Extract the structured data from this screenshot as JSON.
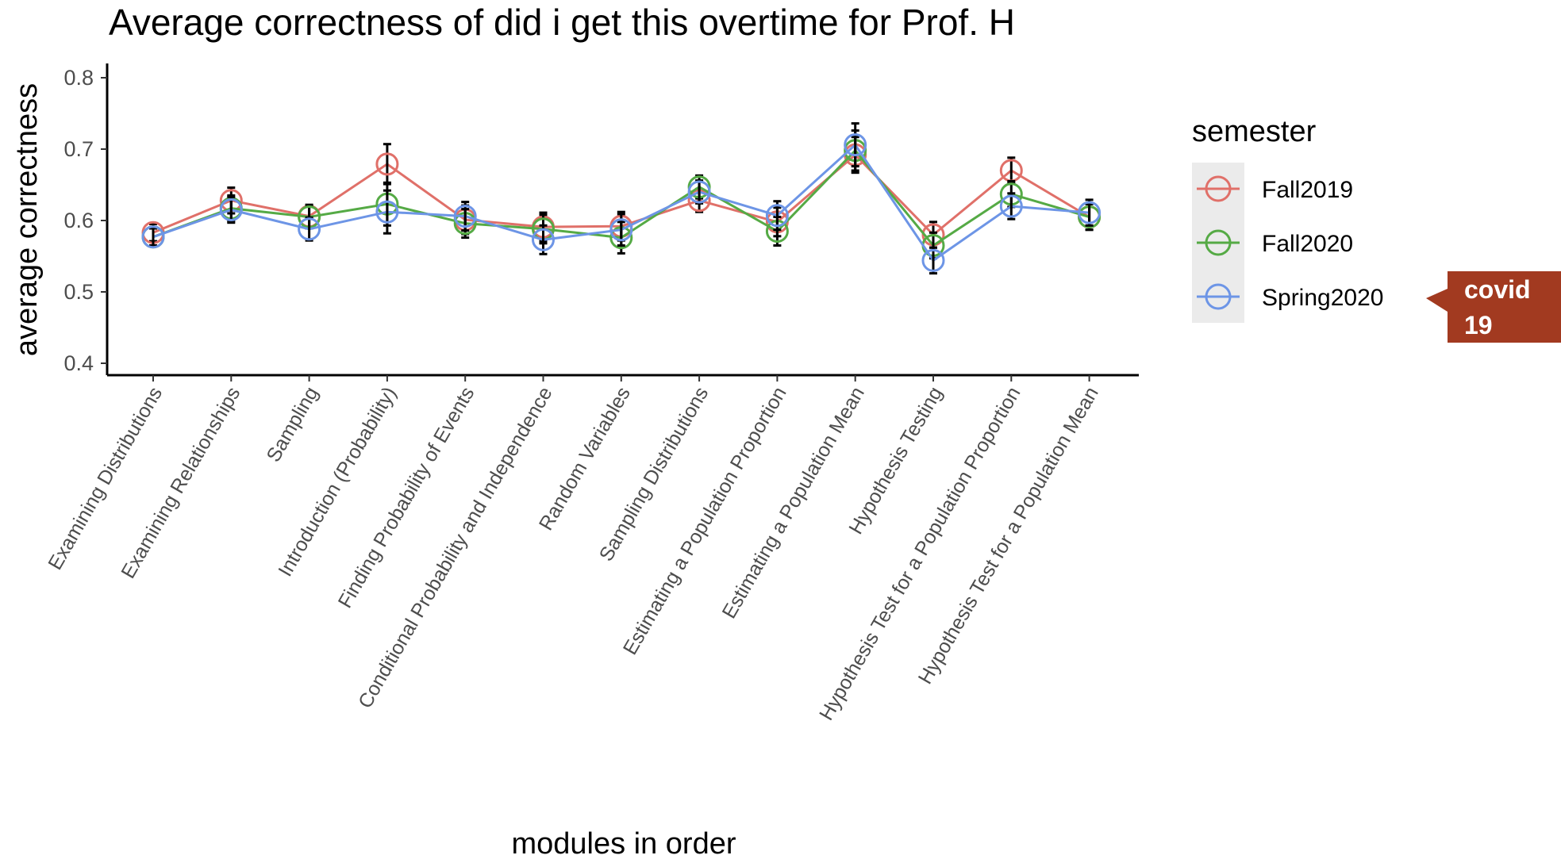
{
  "chart_data": {
    "type": "line",
    "title": "Average correctness of did i get this overtime for Prof. H",
    "xlabel": "modules in order",
    "ylabel": "average correctness",
    "ylim": [
      0.4,
      0.8
    ],
    "yticks": [
      "0.4",
      "0.5",
      "0.6",
      "0.7",
      "0.8"
    ],
    "ytick_values": [
      0.4,
      0.5,
      0.6,
      0.7,
      0.8
    ],
    "grid": false,
    "legend_position": "right",
    "legend_title": "semester",
    "categories": [
      "Examining Distributions",
      "Examining Relationships",
      "Sampling",
      "Introduction (Probability)",
      "Finding Probability of Events",
      "Conditional Probability and Independence",
      "Random Variables",
      "Sampling Distributions",
      "Estimating a Population Proportion",
      "Estimating a Population Mean",
      "Hypothesis Testing",
      "Hypothesis Test for a Population Proportion",
      "Hypothesis Test for a Population Mean"
    ],
    "series": [
      {
        "name": "Fall2019",
        "color": "#e07069",
        "values": [
          0.583,
          0.628,
          0.606,
          0.679,
          0.601,
          0.591,
          0.592,
          0.628,
          0.598,
          0.692,
          0.58,
          0.67,
          0.605
        ],
        "error": [
          0.012,
          0.018,
          0.016,
          0.028,
          0.02,
          0.02,
          0.02,
          0.016,
          0.02,
          0.025,
          0.018,
          0.018,
          0.018
        ]
      },
      {
        "name": "Fall2020",
        "color": "#55aa45",
        "values": [
          0.577,
          0.617,
          0.605,
          0.623,
          0.596,
          0.588,
          0.576,
          0.647,
          0.585,
          0.698,
          0.565,
          0.637,
          0.605
        ],
        "error": [
          0.012,
          0.018,
          0.016,
          0.03,
          0.02,
          0.02,
          0.022,
          0.016,
          0.02,
          0.028,
          0.018,
          0.018,
          0.018
        ]
      },
      {
        "name": "Spring2020",
        "color": "#6d95e6",
        "values": [
          0.577,
          0.615,
          0.588,
          0.612,
          0.606,
          0.573,
          0.587,
          0.64,
          0.607,
          0.706,
          0.544,
          0.62,
          0.611
        ],
        "error": [
          0.012,
          0.018,
          0.016,
          0.03,
          0.02,
          0.02,
          0.022,
          0.016,
          0.02,
          0.03,
          0.018,
          0.018,
          0.018
        ]
      }
    ],
    "annotation": {
      "text_line1": "covid",
      "text_line2": "19",
      "color": "#a23a20"
    }
  }
}
